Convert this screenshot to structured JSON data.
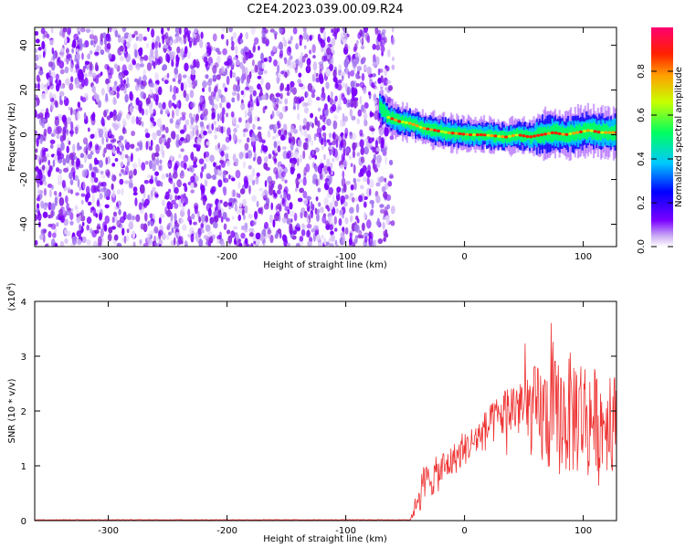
{
  "title": "C2E4.2023.039.00.09.R24",
  "chart_data": [
    {
      "type": "heatmap",
      "xlabel": "Height of straight line (km)",
      "ylabel": "Frequency (Hz)",
      "xlim": [
        -362,
        128
      ],
      "ylim": [
        -50,
        48
      ],
      "x_ticks": [
        -300,
        -200,
        -100,
        0,
        100
      ],
      "y_ticks": [
        -40,
        -20,
        0,
        20,
        40
      ],
      "noise_region_x": [
        -362,
        -60
      ],
      "signal_ridge": {
        "x": [
          -72,
          -65,
          -55,
          -45,
          -35,
          -25,
          -15,
          -5,
          5,
          15,
          25,
          35,
          45,
          55,
          65,
          75,
          85,
          95,
          105,
          115,
          128
        ],
        "frequency": [
          13,
          8,
          6,
          5,
          3,
          2,
          1,
          0.5,
          0,
          0,
          -0.5,
          -1,
          0,
          -1,
          0,
          1,
          0,
          1,
          2,
          1,
          1
        ]
      },
      "colorbar": {
        "label": "Normalized spectral amplitude",
        "range": [
          0,
          1
        ],
        "ticks": [
          "0.0",
          "0.2",
          "0.4",
          "0.6",
          "0.8"
        ],
        "colors": [
          "#ffffff",
          "#c8a8f4",
          "#7a00ff",
          "#0000ff",
          "#00c8ff",
          "#00ff60",
          "#c8ff00",
          "#ffa000",
          "#ff2000",
          "#ff0070"
        ]
      }
    },
    {
      "type": "line",
      "xlabel": "Height of straight line (km)",
      "ylabel": "SNR (10 * v/v)",
      "multiplier_label": "(x10",
      "multiplier_exp": "4",
      "multiplier_close": ")",
      "xlim": [
        -362,
        128
      ],
      "ylim": [
        0,
        4
      ],
      "x_ticks": [
        -300,
        -200,
        -100,
        0,
        100
      ],
      "y_ticks": [
        0,
        1,
        2,
        3,
        4
      ],
      "color": "#ee3333",
      "series": [
        {
          "envelope_x": [
            -362,
            -45,
            -35,
            -25,
            -15,
            -5,
            5,
            15,
            25,
            35,
            45,
            55,
            65,
            75,
            85,
            95,
            105,
            115,
            128
          ],
          "envelope_mean": [
            0.01,
            0.05,
            0.7,
            0.8,
            1.0,
            1.2,
            1.4,
            1.6,
            1.8,
            2.0,
            2.1,
            2.0,
            1.9,
            1.9,
            1.9,
            2.0,
            1.9,
            1.8,
            1.8
          ],
          "envelope_amp": [
            0.01,
            0.05,
            0.3,
            0.35,
            0.3,
            0.3,
            0.3,
            0.35,
            0.4,
            0.5,
            0.6,
            0.8,
            1.0,
            1.1,
            1.1,
            1.2,
            1.0,
            0.9,
            0.9
          ]
        }
      ]
    }
  ]
}
